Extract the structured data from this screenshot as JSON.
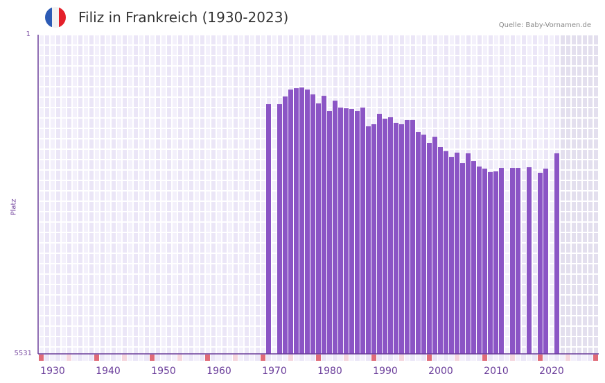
{
  "header": {
    "title": "Filiz in Frankreich (1930-2023)",
    "source": "Quelle: Baby-Vornamen.de",
    "flag_colors": [
      "#2c5bb5",
      "#f2f2f2",
      "#e4202a"
    ]
  },
  "axis": {
    "y_top_label": "1",
    "y_bottom_label": "5531",
    "y_title": "Platz",
    "x_ticks": [
      "1930",
      "1940",
      "1950",
      "1960",
      "1970",
      "1980",
      "1990",
      "2000",
      "2010",
      "2020"
    ]
  },
  "colors": {
    "bar": "#8b55c5",
    "axis": "#6a3d9a",
    "grid_bg_a": "#f3f0fb",
    "grid_bg_b": "#ebe6f7",
    "future_bg": "#e3dfee",
    "decade_marker": "#e06b78",
    "half_decade_marker": "#f5d5dd"
  },
  "chart_data": {
    "type": "bar",
    "title": "Filiz in Frankreich (1930-2023)",
    "xlabel": "",
    "ylabel": "Platz",
    "ylim": [
      5531,
      1
    ],
    "y_inverted": true,
    "grid": true,
    "legend": null,
    "x": [
      1969,
      1970,
      1971,
      1972,
      1973,
      1974,
      1975,
      1976,
      1977,
      1978,
      1979,
      1980,
      1981,
      1982,
      1983,
      1984,
      1985,
      1986,
      1987,
      1988,
      1989,
      1990,
      1991,
      1992,
      1993,
      1994,
      1995,
      1996,
      1997,
      1998,
      1999,
      2000,
      2001,
      2002,
      2003,
      2004,
      2005,
      2006,
      2007,
      2008,
      2009,
      2010,
      2011,
      2012,
      2013,
      2014,
      2015,
      2016,
      2017,
      2018,
      2019,
      2020,
      2021
    ],
    "values": [
      4328,
      null,
      4328,
      4460,
      4580,
      4604,
      4616,
      4580,
      4496,
      4340,
      4472,
      4208,
      4388,
      4268,
      4256,
      4244,
      4208,
      4268,
      3943,
      3979,
      4160,
      4076,
      4100,
      4004,
      3979,
      4052,
      4052,
      3847,
      3799,
      3655,
      3763,
      3583,
      3511,
      3414,
      3487,
      3306,
      3475,
      3342,
      3246,
      3210,
      3150,
      3162,
      3222,
      null,
      3222,
      3222,
      null,
      3234,
      null,
      3138,
      3210,
      null,
      3475
    ],
    "note": "values are rank heights read as bar height proxies; lower rank number = taller bar"
  }
}
